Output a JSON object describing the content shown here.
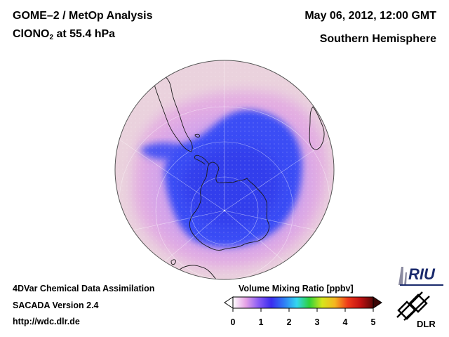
{
  "header": {
    "title": "GOME–2 / MetOp Analysis",
    "species_prefix": "ClONO",
    "species_subscript": "2",
    "species_suffix": " at 55.4 hPa",
    "date": "May 06, 2012, 12:00 GMT",
    "hemisphere": "Southern Hemisphere"
  },
  "footer": {
    "line1": "4DVar Chemical Data Assimilation",
    "line2": "SACADA Version 2.4",
    "line3": "http://wdc.dlr.de"
  },
  "colorbar": {
    "title": "Volume Mixing Ratio [ppbv]",
    "ticks": [
      "0",
      "1",
      "2",
      "3",
      "4",
      "5"
    ],
    "min": 0,
    "max": 5,
    "colors": [
      "#ffffff",
      "#e6a3e6",
      "#8a5cf5",
      "#3a2cf0",
      "#2f7cf5",
      "#33d6f0",
      "#2fd23a",
      "#d6e61c",
      "#f5b51f",
      "#f03a1a",
      "#c21212",
      "#5a0808"
    ]
  },
  "logos": {
    "riu": "RIU",
    "dlr": "DLR"
  },
  "map": {
    "projection": "orthographic south polar",
    "ocean_color": "#ead2dd",
    "low_color": "#e6a3e6",
    "vortex_color": "#3a4df5",
    "vortex_mean_ppbv": 0.5
  }
}
